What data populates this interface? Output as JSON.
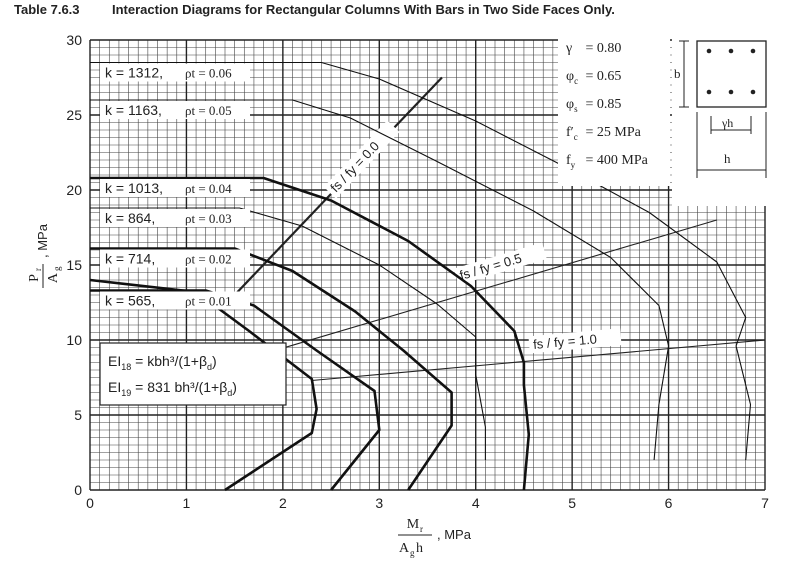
{
  "table": {
    "title": "Table 7.6.3",
    "caption": "Interaction Diagrams for Rectangular Columns With Bars in Two Side Faces Only."
  },
  "chart_data": {
    "type": "line",
    "xlim": [
      0,
      7
    ],
    "ylim": [
      0,
      30
    ],
    "x_ticks": [
      "0",
      "1",
      "2",
      "3",
      "4",
      "5",
      "6",
      "7"
    ],
    "y_ticks": [
      "0",
      "5",
      "10",
      "15",
      "20",
      "25",
      "30"
    ],
    "xlabel": {
      "num": "M",
      "num_sub": "r",
      "den": "A",
      "den_sub": "g",
      "den_tail": "h",
      "unit": ", MPa"
    },
    "ylabel": {
      "num": "P",
      "num_sub": "r",
      "den": "A",
      "den_sub": "g",
      "unit": ", MPa"
    },
    "grid": true,
    "params": [
      {
        "sym": "γ",
        "sub": "",
        "text": "= 0.80"
      },
      {
        "sym": "φ",
        "sub": "c",
        "text": "= 0.65"
      },
      {
        "sym": "φ",
        "sub": "s",
        "text": "= 0.85"
      },
      {
        "sym": "f′",
        "sub": "c",
        "text": "= 25 MPa"
      },
      {
        "sym": "f",
        "sub": "y",
        "text": "= 400 MPa"
      }
    ],
    "section_labels": {
      "b": "b",
      "gh": "γh",
      "h": "h"
    },
    "formulas": [
      {
        "lhs": "EI",
        "sub": "18",
        "rhs": "= kbh³/(1+β",
        "rsub": "d",
        "end": ")"
      },
      {
        "lhs": "EI",
        "sub": "19",
        "rhs": "= 831 bh³/(1+β",
        "rsub": "d",
        "end": ")"
      }
    ],
    "series": [
      {
        "k": "k = 1312,",
        "rho": "ρt = 0.06",
        "bold": false,
        "points": [
          [
            0,
            28.5
          ],
          [
            2.4,
            28.5
          ],
          [
            3.0,
            27.4
          ],
          [
            4.0,
            24.6
          ],
          [
            5.0,
            21.3
          ],
          [
            5.8,
            18.5
          ],
          [
            6.5,
            15.2
          ],
          [
            6.8,
            11.5
          ],
          [
            6.7,
            9.6
          ],
          [
            6.85,
            5.7
          ],
          [
            6.8,
            2.0
          ]
        ]
      },
      {
        "k": "k = 1163,",
        "rho": "ρt = 0.05",
        "bold": false,
        "points": [
          [
            0,
            26.0
          ],
          [
            2.1,
            26.0
          ],
          [
            2.7,
            24.8
          ],
          [
            3.6,
            21.9
          ],
          [
            4.6,
            18.6
          ],
          [
            5.4,
            15.5
          ],
          [
            5.9,
            12.3
          ],
          [
            6.0,
            9.6
          ],
          [
            5.9,
            5.7
          ],
          [
            5.85,
            2.0
          ]
        ]
      },
      {
        "k": "k = 1013,",
        "rho": "ρt = 0.04",
        "bold": true,
        "points": [
          [
            0,
            20.8
          ],
          [
            1.8,
            20.8
          ],
          [
            2.5,
            19.3
          ],
          [
            3.3,
            16.6
          ],
          [
            3.95,
            13.6
          ],
          [
            4.4,
            10.6
          ],
          [
            4.5,
            8.5
          ],
          [
            4.5,
            7.0
          ],
          [
            4.55,
            3.7
          ],
          [
            4.5,
            0
          ]
        ]
      },
      {
        "k": "k = 864,",
        "rho": "ρt = 0.03",
        "bold": false,
        "points": [
          [
            0,
            18.8
          ],
          [
            1.55,
            18.8
          ],
          [
            2.2,
            17.6
          ],
          [
            3.0,
            15.0
          ],
          [
            3.6,
            12.4
          ],
          [
            4.0,
            10.2
          ],
          [
            4.0,
            7.7
          ],
          [
            4.1,
            4.2
          ],
          [
            4.1,
            2.0
          ]
        ]
      },
      {
        "k": "k = 714,",
        "rho": "ρt = 0.02",
        "bold": true,
        "points": [
          [
            0,
            16.1
          ],
          [
            1.5,
            16.1
          ],
          [
            2.1,
            14.6
          ],
          [
            2.75,
            11.9
          ],
          [
            3.25,
            9.3
          ],
          [
            3.75,
            6.5
          ],
          [
            3.75,
            4.3
          ],
          [
            3.3,
            0
          ]
        ]
      },
      {
        "k": "k = 565,",
        "rho": "ρt = 0.01",
        "bold": true,
        "points": [
          [
            0,
            13.3
          ],
          [
            1.2,
            13.3
          ],
          [
            1.7,
            12.3
          ],
          [
            2.35,
            9.3
          ],
          [
            2.95,
            6.6
          ],
          [
            3.0,
            4.0
          ],
          [
            2.5,
            0
          ]
        ]
      },
      {
        "k": "",
        "rho": "",
        "bold": true,
        "points": [
          [
            0,
            14.0
          ],
          [
            1.1,
            13.2
          ],
          [
            1.65,
            10.6
          ],
          [
            2.3,
            7.4
          ],
          [
            2.35,
            5.4
          ],
          [
            2.3,
            3.8
          ],
          [
            1.4,
            0
          ]
        ]
      }
    ],
    "annotations": [
      {
        "label": "fs / fy = 0.0",
        "points": [
          [
            1.5,
            13.0
          ],
          [
            3.65,
            27.5
          ]
        ]
      },
      {
        "label": "fs / fy = 0.5",
        "points": [
          [
            1.6,
            8.7
          ],
          [
            6.5,
            18.0
          ]
        ]
      },
      {
        "label": "fs / fy = 1.0",
        "points": [
          [
            2.3,
            7.3
          ],
          [
            7.0,
            10.0
          ]
        ]
      }
    ]
  }
}
